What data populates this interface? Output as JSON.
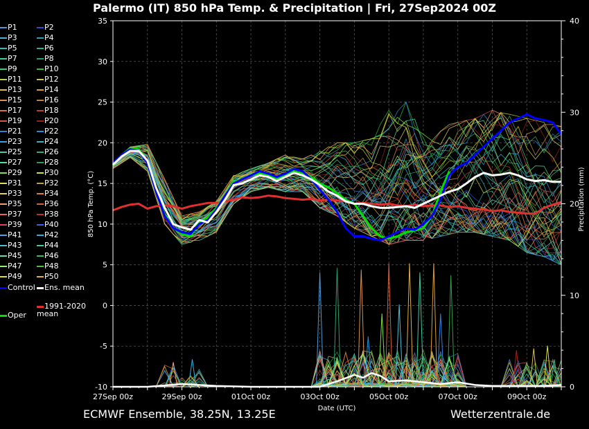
{
  "title": "Palermo  (IT)  850 hPa Temp. & Precipitation | Fri, 27Sep2024 00Z",
  "footer": {
    "model": "ECMWF Ensemble, 38.25N, 13.25E",
    "source": "Wetterzentrale.de"
  },
  "colors": {
    "background": "#000000",
    "control": "#0000ff",
    "ens_mean": "#ffffff",
    "climate_mean": "#e03030",
    "oper": "#00e000"
  },
  "chart_data": {
    "type": "line",
    "xlabel": "Date (UTC)",
    "ylabel": "850 hPa Temp. (°C)",
    "ylabel_right": "Precipitation (mm)",
    "ylim": [
      -10,
      35
    ],
    "ylim_right": [
      0,
      40
    ],
    "yticks": [
      "35",
      "30",
      "25",
      "20",
      "15",
      "10",
      "5",
      "0",
      "-5",
      "-10"
    ],
    "yticks_right": [
      "40",
      "30",
      "20",
      "10",
      "0"
    ],
    "xlim_days": [
      0,
      13
    ],
    "xticks": [
      {
        "day": 0,
        "label": "27Sep 00z"
      },
      {
        "day": 2,
        "label": "29Sep 00z"
      },
      {
        "day": 4,
        "label": "01Oct 00z"
      },
      {
        "day": 6,
        "label": "03Oct 00z"
      },
      {
        "day": 8,
        "label": "05Oct 00z"
      },
      {
        "day": 10,
        "label": "07Oct 00z"
      },
      {
        "day": 12,
        "label": "09Oct 00z"
      }
    ],
    "grid": true,
    "legend_position": "left",
    "legend": [
      {
        "label": "P1",
        "color": "#4f9ad6"
      },
      {
        "label": "P2",
        "color": "#2a4fd6"
      },
      {
        "label": "P3",
        "color": "#4fb0d6"
      },
      {
        "label": "P4",
        "color": "#2aa0b0"
      },
      {
        "label": "P5",
        "color": "#2ac0c0"
      },
      {
        "label": "P6",
        "color": "#2ab090"
      },
      {
        "label": "P7",
        "color": "#3ad0a0"
      },
      {
        "label": "P8",
        "color": "#2aa070"
      },
      {
        "label": "P9",
        "color": "#3ad070"
      },
      {
        "label": "P10",
        "color": "#30c030"
      },
      {
        "label": "P11",
        "color": "#c0d040"
      },
      {
        "label": "P12",
        "color": "#d0c060"
      },
      {
        "label": "P13",
        "color": "#e0c040"
      },
      {
        "label": "P14",
        "color": "#e0a030"
      },
      {
        "label": "P15",
        "color": "#e09050"
      },
      {
        "label": "P16",
        "color": "#c08040"
      },
      {
        "label": "P17",
        "color": "#e07040"
      },
      {
        "label": "P18",
        "color": "#c04030"
      },
      {
        "label": "P19",
        "color": "#e05050"
      },
      {
        "label": "P20",
        "color": "#a02020"
      },
      {
        "label": "P21",
        "color": "#3080e0"
      },
      {
        "label": "P22",
        "color": "#2090e0"
      },
      {
        "label": "P23",
        "color": "#40a0e0"
      },
      {
        "label": "P24",
        "color": "#40b0c0"
      },
      {
        "label": "P25",
        "color": "#40d0b0"
      },
      {
        "label": "P26",
        "color": "#30b080"
      },
      {
        "label": "P27",
        "color": "#50e0a0"
      },
      {
        "label": "P28",
        "color": "#30a050"
      },
      {
        "label": "P29",
        "color": "#80e050"
      },
      {
        "label": "P30",
        "color": "#d0e040"
      },
      {
        "label": "P31",
        "color": "#e0e060"
      },
      {
        "label": "P32",
        "color": "#c0a050"
      },
      {
        "label": "P33",
        "color": "#f0d050"
      },
      {
        "label": "P34",
        "color": "#e08030"
      },
      {
        "label": "P35",
        "color": "#f0a070"
      },
      {
        "label": "P36",
        "color": "#d06040"
      },
      {
        "label": "P37",
        "color": "#f06060"
      },
      {
        "label": "P38",
        "color": "#c03030"
      },
      {
        "label": "P39",
        "color": "#e04060"
      },
      {
        "label": "P40",
        "color": "#4060f0"
      },
      {
        "label": "P41",
        "color": "#50a0f0"
      },
      {
        "label": "P42",
        "color": "#30b0e0"
      },
      {
        "label": "P43",
        "color": "#50c0d0"
      },
      {
        "label": "P44",
        "color": "#40d090"
      },
      {
        "label": "P45",
        "color": "#60e0b0"
      },
      {
        "label": "P46",
        "color": "#30c060"
      },
      {
        "label": "P47",
        "color": "#90f070"
      },
      {
        "label": "P48",
        "color": "#50c040"
      },
      {
        "label": "P49",
        "color": "#e0e030"
      },
      {
        "label": "P50",
        "color": "#e0b040"
      }
    ],
    "special_legend": [
      {
        "label": "Control",
        "color": "#0000ff"
      },
      {
        "label": "Ens. mean",
        "color": "#ffffff"
      },
      {
        "label": "1991-2020 mean",
        "color": "#e03030"
      },
      {
        "label": "Oper",
        "color": "#00e000"
      }
    ],
    "series": [
      {
        "name": "Ens. mean",
        "color": "#ffffff",
        "width": 3,
        "x": [
          0,
          0.25,
          0.5,
          0.75,
          1,
          1.25,
          1.5,
          1.75,
          2,
          2.25,
          2.5,
          2.75,
          3,
          3.25,
          3.5,
          3.75,
          4,
          4.25,
          4.5,
          4.75,
          5,
          5.25,
          5.5,
          5.75,
          6,
          6.25,
          6.5,
          6.75,
          7,
          7.25,
          7.5,
          7.75,
          8,
          8.25,
          8.5,
          8.75,
          9,
          9.25,
          9.5,
          9.75,
          10,
          10.25,
          10.5,
          10.75,
          11,
          11.25,
          11.5,
          11.75,
          12,
          12.25,
          12.5,
          12.75,
          13
        ],
        "y": [
          17.3,
          18.3,
          19.0,
          19.0,
          17.8,
          14.5,
          12.0,
          10.0,
          9.6,
          9.3,
          10.5,
          10.2,
          11.5,
          13.0,
          14.8,
          15.0,
          15.5,
          16.0,
          15.8,
          15.3,
          15.8,
          16.3,
          16.0,
          15.5,
          14.8,
          14.0,
          13.5,
          12.8,
          12.5,
          12.5,
          12.2,
          12.0,
          12.0,
          12.1,
          12.2,
          12.0,
          12.5,
          13.0,
          13.5,
          14.0,
          14.3,
          15.0,
          15.8,
          16.3,
          16.0,
          16.1,
          16.3,
          16.0,
          15.5,
          15.3,
          15.4,
          15.2,
          15.2
        ]
      },
      {
        "name": "Control",
        "color": "#0000ff",
        "width": 3,
        "x": [
          0,
          0.25,
          0.5,
          0.75,
          1,
          1.25,
          1.5,
          1.75,
          2,
          2.25,
          2.5,
          2.75,
          3,
          3.25,
          3.5,
          3.75,
          4,
          4.25,
          4.5,
          4.75,
          5,
          5.25,
          5.5,
          5.75,
          6,
          6.25,
          6.5,
          6.75,
          7,
          7.25,
          7.5,
          7.75,
          8,
          8.25,
          8.5,
          8.75,
          9,
          9.25,
          9.5,
          9.75,
          10,
          10.25,
          10.5,
          10.75,
          11,
          11.25,
          11.5,
          11.75,
          12,
          12.25,
          12.5,
          12.75,
          13
        ],
        "y": [
          17.5,
          18.5,
          19.2,
          19.0,
          17.5,
          14.0,
          11.0,
          9.5,
          9.0,
          8.8,
          10.0,
          10.5,
          11.8,
          13.5,
          15.0,
          15.5,
          16.0,
          16.5,
          16.2,
          15.8,
          16.2,
          16.8,
          16.5,
          15.5,
          14.2,
          13.0,
          11.5,
          9.5,
          8.5,
          8.5,
          8.2,
          8.0,
          8.5,
          9.0,
          9.5,
          9.3,
          10.0,
          11.0,
          13.0,
          16.0,
          17.0,
          17.5,
          18.5,
          19.5,
          20.5,
          21.5,
          22.5,
          23.0,
          23.5,
          23.0,
          22.8,
          22.5,
          21.0
        ]
      },
      {
        "name": "Oper",
        "color": "#00e000",
        "width": 3,
        "x": [
          0,
          0.25,
          0.5,
          0.75,
          1,
          1.25,
          1.5,
          1.75,
          2,
          2.25,
          2.5,
          2.75,
          3,
          3.25,
          3.5,
          3.75,
          4,
          4.25,
          4.5,
          4.75,
          5,
          5.25,
          5.5,
          5.75,
          6,
          6.25,
          6.5,
          6.75,
          7,
          7.25,
          7.5,
          7.75,
          8,
          8.25,
          8.5,
          8.75,
          9,
          9.25,
          9.5,
          9.75
        ],
        "y": [
          17.2,
          18.5,
          19.3,
          19.2,
          17.6,
          14.2,
          11.2,
          9.5,
          8.8,
          8.5,
          10.2,
          10.8,
          12.0,
          13.5,
          15.2,
          15.5,
          16.0,
          16.2,
          16.0,
          15.5,
          16.0,
          16.5,
          16.2,
          15.8,
          15.0,
          14.5,
          13.8,
          13.0,
          12.5,
          11.0,
          9.5,
          8.5,
          8.2,
          8.5,
          9.0,
          9.2,
          9.5,
          11.0,
          14.0,
          16.5
        ]
      },
      {
        "name": "1991-2020 mean",
        "color": "#e03030",
        "width": 3,
        "x": [
          0,
          0.25,
          0.5,
          0.75,
          1,
          1.25,
          1.5,
          1.75,
          2,
          2.25,
          2.5,
          2.75,
          3,
          3.25,
          3.5,
          3.75,
          4,
          4.25,
          4.5,
          4.75,
          5,
          5.25,
          5.5,
          5.75,
          6,
          6.25,
          6.5,
          6.75,
          7,
          7.25,
          7.5,
          7.75,
          8,
          8.25,
          8.5,
          8.75,
          9,
          9.25,
          9.5,
          9.75,
          10,
          10.25,
          10.5,
          10.75,
          11,
          11.25,
          11.5,
          11.75,
          12,
          12.25,
          12.5,
          12.75,
          13
        ],
        "y": [
          11.7,
          12.1,
          12.4,
          12.5,
          11.9,
          12.2,
          12.3,
          12.2,
          11.9,
          12.2,
          12.4,
          12.6,
          12.6,
          12.8,
          13.0,
          13.3,
          13.2,
          13.3,
          13.5,
          13.4,
          13.2,
          13.1,
          13.0,
          13.1,
          12.9,
          13.0,
          12.9,
          12.8,
          12.5,
          12.6,
          12.5,
          12.4,
          12.5,
          12.3,
          12.2,
          12.4,
          12.2,
          12.3,
          12.3,
          12.1,
          12.2,
          12.0,
          11.9,
          11.8,
          11.6,
          11.7,
          11.5,
          11.4,
          11.3,
          11.3,
          12.0,
          12.4,
          12.7
        ]
      }
    ],
    "ensemble_spread": {
      "x": [
        0,
        0.5,
        1,
        1.5,
        2,
        2.5,
        3,
        3.5,
        4,
        4.5,
        5,
        5.5,
        6,
        6.5,
        7,
        7.5,
        8,
        8.5,
        9,
        9.5,
        10,
        10.5,
        11,
        11.5,
        12,
        12.5,
        13
      ],
      "low": [
        16.8,
        18.2,
        16.5,
        10.0,
        7.5,
        8.0,
        9.0,
        12.5,
        14.0,
        14.5,
        14.0,
        14.0,
        12.0,
        11.0,
        9.5,
        8.5,
        7.5,
        8.0,
        8.0,
        8.5,
        9.0,
        9.0,
        8.5,
        8.0,
        6.5,
        6.0,
        5.0
      ],
      "high": [
        17.6,
        19.5,
        19.8,
        15.5,
        11.0,
        11.5,
        12.8,
        16.0,
        16.8,
        17.5,
        18.5,
        18.0,
        19.0,
        20.0,
        20.0,
        20.5,
        24.0,
        25.0,
        22.0,
        22.0,
        22.5,
        23.0,
        24.0,
        23.5,
        23.0,
        22.5,
        22.0
      ]
    },
    "precipitation": {
      "ens_mean_x": [
        0,
        1,
        2,
        3,
        4,
        5,
        6,
        6.5,
        7,
        7.25,
        7.5,
        7.75,
        8,
        8.5,
        9,
        9.5,
        10,
        10.5,
        11,
        12,
        12.5,
        13
      ],
      "ens_mean_y": [
        0,
        0,
        0.3,
        0.1,
        0,
        0,
        0,
        0.6,
        1.3,
        1.0,
        1.5,
        1.2,
        0.6,
        0.7,
        0.5,
        0.3,
        0.5,
        0.2,
        0.1,
        0.1,
        0.1,
        0.2
      ],
      "spikes": [
        {
          "x": 6.0,
          "y": 12.5
        },
        {
          "x": 6.5,
          "y": 13.0
        },
        {
          "x": 7.2,
          "y": 12.8
        },
        {
          "x": 7.4,
          "y": 5.5
        },
        {
          "x": 7.8,
          "y": 8.0
        },
        {
          "x": 8.0,
          "y": 13.5
        },
        {
          "x": 8.3,
          "y": 9.0
        },
        {
          "x": 8.6,
          "y": 13.5
        },
        {
          "x": 8.9,
          "y": 12.5
        },
        {
          "x": 9.3,
          "y": 13.5
        },
        {
          "x": 9.5,
          "y": 8.0
        },
        {
          "x": 9.8,
          "y": 12.2
        },
        {
          "x": 1.75,
          "y": 2.7
        },
        {
          "x": 2.3,
          "y": 3.0
        },
        {
          "x": 12.6,
          "y": 4.5
        },
        {
          "x": 12.8,
          "y": 3.0
        },
        {
          "x": 12.2,
          "y": 4.2
        },
        {
          "x": 11.7,
          "y": 4.0
        }
      ]
    }
  }
}
